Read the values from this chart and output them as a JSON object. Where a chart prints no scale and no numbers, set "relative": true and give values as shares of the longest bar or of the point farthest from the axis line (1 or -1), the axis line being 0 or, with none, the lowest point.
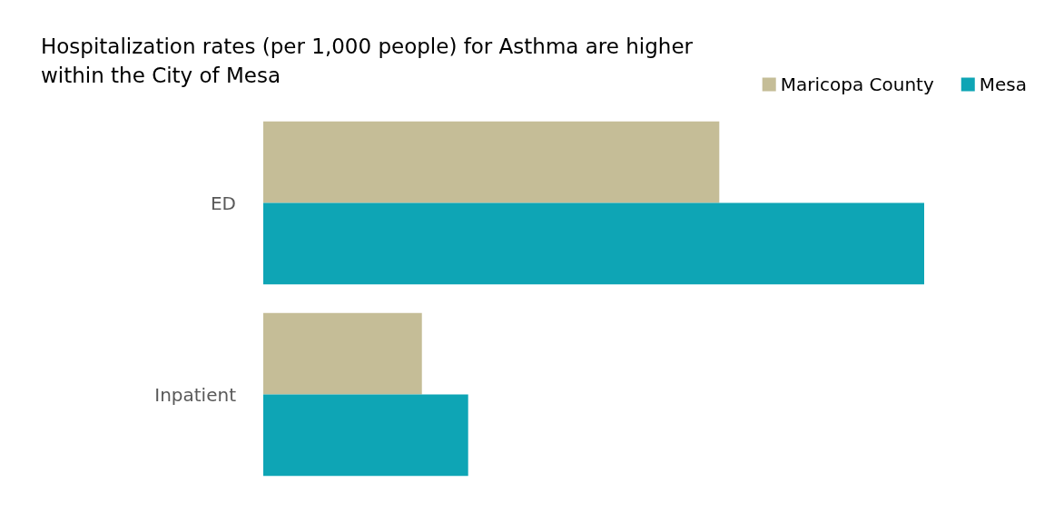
{
  "chart_data": {
    "type": "bar",
    "orientation": "horizontal",
    "relative": true,
    "title": "Hospitalization rates (per 1,000 people) for Asthma are higher\nwithin the City of Mesa",
    "categories": [
      "ED",
      "Inpatient"
    ],
    "series": [
      {
        "name": "Maricopa County",
        "color": "#c5bd97",
        "values": [
          0.69,
          0.24
        ]
      },
      {
        "name": "Mesa",
        "color": "#0ea5b5",
        "values": [
          1,
          0.31
        ]
      }
    ],
    "legend": "top right"
  }
}
